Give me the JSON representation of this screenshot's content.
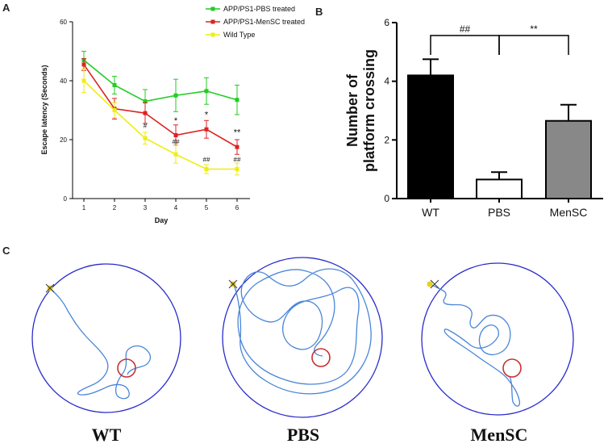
{
  "panels": {
    "a_letter": "A",
    "b_letter": "B",
    "c_letter": "C"
  },
  "chart_data": [
    {
      "type": "line",
      "panel": "A",
      "xlabel": "Day",
      "ylabel": "Escape latency (Seconds)",
      "x": [
        1,
        2,
        3,
        4,
        5,
        6
      ],
      "ylim": [
        0,
        60
      ],
      "yticks": [
        "0",
        "20",
        "40",
        "60"
      ],
      "xticks": [
        "1",
        "2",
        "3",
        "4",
        "5",
        "6"
      ],
      "series": [
        {
          "name": "APP/PS1-PBS treated",
          "color": "#22cc22",
          "values": [
            47,
            38.5,
            33,
            35,
            36.5,
            33.5
          ],
          "errors": [
            3,
            3,
            4,
            5.5,
            4.5,
            5
          ]
        },
        {
          "name": "APP/PS1-MenSC treated",
          "color": "#dd2222",
          "values": [
            45.5,
            30.5,
            29,
            21.5,
            23.5,
            17.5
          ],
          "errors": [
            2,
            3.5,
            3.5,
            3.5,
            3,
            2.5
          ]
        },
        {
          "name": "Wild Type",
          "color": "#eeee11",
          "values": [
            40,
            30,
            20.5,
            15,
            10,
            10
          ],
          "errors": [
            4,
            2.5,
            2,
            3,
            1.5,
            2
          ]
        }
      ],
      "annotations": [
        {
          "label": "*",
          "x": 4,
          "y": 25.5,
          "size": "large"
        },
        {
          "label": "*",
          "x": 5,
          "y": 27.5,
          "size": "large"
        },
        {
          "label": "**",
          "x": 6,
          "y": 21.5,
          "size": "large"
        },
        {
          "label": "#",
          "x": 3,
          "y": 24,
          "size": "small"
        },
        {
          "label": "##",
          "x": 4,
          "y": 18.5,
          "size": "small"
        },
        {
          "label": "##",
          "x": 5,
          "y": 12.5,
          "size": "small"
        },
        {
          "label": "##",
          "x": 6,
          "y": 12.5,
          "size": "small"
        }
      ]
    },
    {
      "type": "bar",
      "panel": "B",
      "categories": [
        "WT",
        "PBS",
        "MenSC"
      ],
      "values": [
        4.2,
        0.65,
        2.65
      ],
      "errors": [
        0.55,
        0.25,
        0.55
      ],
      "colors": [
        "#000000",
        "#ffffff",
        "#888888"
      ],
      "ylabel": "Number of platform crossing",
      "ylabel_lines": [
        "Number of",
        "platform crossing"
      ],
      "ylim": [
        0,
        6
      ],
      "yticks": [
        "0",
        "2",
        "4",
        "6"
      ],
      "brackets": [
        {
          "from": "WT",
          "to": "PBS",
          "label": "##",
          "y": 5.6
        },
        {
          "from": "PBS",
          "to": "MenSC",
          "label": "**",
          "y": 5.6
        }
      ]
    }
  ],
  "tracks": {
    "labels": [
      "WT",
      "PBS",
      "MenSC"
    ],
    "colors": {
      "arena": "#2a2acc",
      "path": "#4a86d8",
      "platform": "#c83030",
      "start": "#e8d020"
    }
  }
}
